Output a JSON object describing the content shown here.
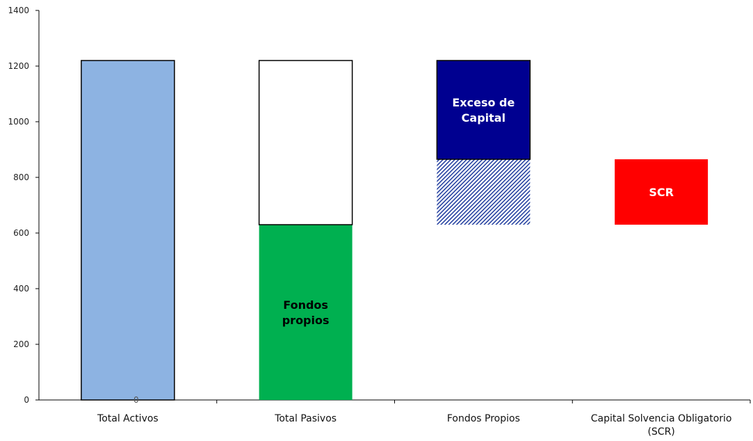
{
  "chart_data": {
    "type": "bar",
    "subtype": "stacked-floating",
    "title": "",
    "xlabel": "",
    "ylabel": "",
    "ylim": [
      0,
      1400
    ],
    "yticks": [
      0,
      200,
      400,
      600,
      800,
      1000,
      1200,
      1400
    ],
    "grid": false,
    "categories": [
      "Total Activos",
      "Total Pasivos",
      "Fondos Propios",
      "Capital Solvencia Obligatorio (SCR)"
    ],
    "category_lines": [
      [
        "Total Activos"
      ],
      [
        "Total Pasivos"
      ],
      [
        "Fondos Propios"
      ],
      [
        "Capital Solvencia Obligatorio",
        "(SCR)"
      ]
    ],
    "segments": [
      {
        "category": 0,
        "base": 0,
        "top": 1220,
        "label": "",
        "fill": "#8DB3E2",
        "pattern": "",
        "stroke": "#000000",
        "label_color": ""
      },
      {
        "category": 1,
        "base": 0,
        "top": 630,
        "label": "",
        "fill": "#00B050",
        "pattern": "",
        "stroke": "",
        "label_color": ""
      },
      {
        "category": 1,
        "base": 630,
        "top": 1220,
        "label": "Fondos propios",
        "fill": "#FFFFFF",
        "pattern": "",
        "stroke": "#000000",
        "label_color": "#1F1FE0"
      },
      {
        "category": 2,
        "base": 630,
        "top": 865,
        "label": "",
        "fill": "#1F3C9E",
        "pattern": "hatch",
        "stroke": "",
        "label_color": ""
      },
      {
        "category": 2,
        "base": 865,
        "top": 1220,
        "label": "Exceso de Capital",
        "fill": "#000090",
        "pattern": "",
        "stroke": "#000000",
        "label_color": "#FFFFFF"
      },
      {
        "category": 3,
        "base": 630,
        "top": 865,
        "label": "SCR",
        "fill": "#FF0000",
        "pattern": "",
        "stroke": "",
        "label_color": "#FFFFFF"
      }
    ],
    "segment_label_lines": {
      "1": [
        "Fondos",
        "propios"
      ],
      "4": [
        "Exceso de",
        "Capital"
      ],
      "5": [
        "SCR"
      ]
    },
    "data_labels": [
      {
        "category": 0,
        "value": 0,
        "text": "0"
      }
    ]
  }
}
